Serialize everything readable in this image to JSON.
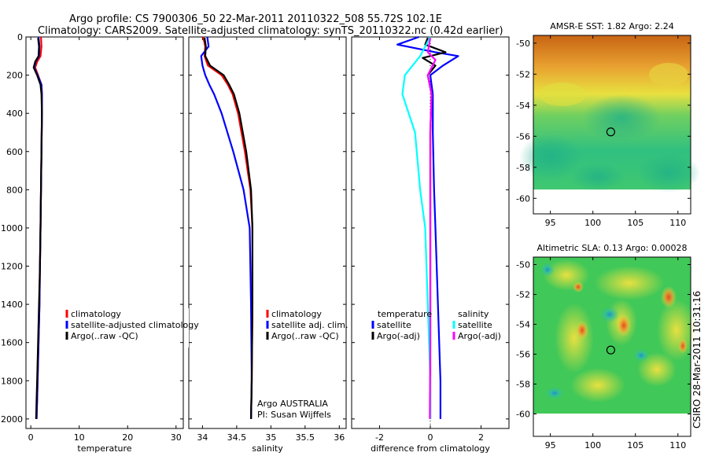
{
  "title": {
    "line1": "Argo profile: CS 7900306_50 22-Mar-2011 20110322_508 55.72S 102.1E",
    "line2": "Climatology: CARS2009. Satellite-adjusted climatology: synTS_20110322.nc (0.42d earlier)"
  },
  "footer_stamp": "CSIRO 28-Mar-2011 10:31:16",
  "colors": {
    "red": "#ff0000",
    "blue": "#0000ff",
    "black": "#000000",
    "cyan": "#00ffff",
    "magenta": "#ff00ff"
  },
  "chart_data": [
    {
      "id": "temperature",
      "type": "line",
      "xlabel": "temperature",
      "xlim": [
        -1,
        31.5
      ],
      "ylim": [
        0,
        2050
      ],
      "y_inverted": true,
      "xticks": [
        0,
        10,
        20,
        30
      ],
      "yticks": [
        0,
        200,
        400,
        600,
        800,
        1000,
        1200,
        1400,
        1600,
        1800,
        2000
      ],
      "legend": {
        "entries": [
          "climatology",
          "satellite-adjusted climatology",
          "Argo(..raw -QC)"
        ]
      },
      "series": [
        {
          "name": "climatology",
          "color": "red",
          "x": [
            2.1,
            2.2,
            2.0,
            1.3,
            0.9,
            1.5,
            2.2,
            2.3,
            2.3,
            2.2,
            2.1,
            2.0,
            1.9,
            1.8,
            1.6,
            1.4,
            1.3,
            1.2
          ],
          "y": [
            0,
            50,
            100,
            130,
            160,
            200,
            250,
            300,
            400,
            600,
            800,
            1000,
            1200,
            1400,
            1600,
            1800,
            1900,
            2000
          ]
        },
        {
          "name": "satellite-adjusted climatology",
          "color": "blue",
          "x": [
            1.6,
            1.8,
            1.7,
            1.0,
            0.7,
            1.4,
            2.2,
            2.3,
            2.3,
            2.2,
            2.1,
            2.0,
            1.9,
            1.8,
            1.6,
            1.4,
            1.3,
            1.2
          ],
          "y": [
            0,
            50,
            100,
            130,
            160,
            200,
            250,
            300,
            400,
            600,
            800,
            1000,
            1200,
            1400,
            1600,
            1800,
            1900,
            2000
          ]
        },
        {
          "name": "Argo(..raw -QC)",
          "color": "black",
          "x": [
            1.5,
            1.7,
            1.6,
            0.9,
            0.6,
            1.3,
            2.0,
            2.2,
            2.3,
            2.2,
            2.1,
            2.0,
            1.9,
            1.7,
            1.5,
            1.3,
            1.2,
            1.1
          ],
          "y": [
            5,
            50,
            100,
            130,
            160,
            200,
            250,
            300,
            400,
            600,
            800,
            1000,
            1200,
            1400,
            1600,
            1800,
            1900,
            2000
          ]
        }
      ]
    },
    {
      "id": "salinity",
      "type": "line",
      "xlabel": "salinity",
      "xlim": [
        33.8,
        36.1
      ],
      "ylim": [
        0,
        2050
      ],
      "y_inverted": true,
      "xticks": [
        34,
        34.5,
        35,
        35.5,
        36
      ],
      "legend": {
        "entries": [
          "climatology",
          "satellite adj. clim.",
          "Argo(..raw -QC)"
        ]
      },
      "annotation": {
        "line1": "Argo AUSTRALIA",
        "line2": "PI: Susan Wijffels"
      },
      "series": [
        {
          "name": "climatology",
          "color": "red",
          "x": [
            34.01,
            34.04,
            34.03,
            34.08,
            34.28,
            34.37,
            34.44,
            34.52,
            34.62,
            34.7,
            34.73,
            34.73,
            34.72,
            34.71
          ],
          "y": [
            0,
            50,
            100,
            150,
            200,
            250,
            300,
            400,
            600,
            800,
            1000,
            1400,
            1800,
            2000
          ]
        },
        {
          "name": "satellite adj. clim.",
          "color": "blue",
          "x": [
            34.07,
            34.09,
            33.98,
            34.0,
            34.04,
            34.1,
            34.17,
            34.28,
            34.45,
            34.6,
            34.69,
            34.71,
            34.72,
            34.71
          ],
          "y": [
            0,
            50,
            100,
            150,
            200,
            250,
            300,
            400,
            600,
            800,
            1000,
            1400,
            1800,
            2000
          ]
        },
        {
          "name": "Argo(..raw -QC)",
          "color": "black",
          "x": [
            34.03,
            34.05,
            34.04,
            34.11,
            34.31,
            34.39,
            34.46,
            34.54,
            34.64,
            34.71,
            34.73,
            34.73,
            34.72,
            34.71
          ],
          "y": [
            5,
            50,
            100,
            150,
            200,
            250,
            300,
            400,
            600,
            800,
            1000,
            1400,
            1800,
            2000
          ]
        }
      ]
    },
    {
      "id": "difference",
      "type": "line",
      "xlabel": "difference from climatology",
      "xlim": [
        -3.1,
        3.1
      ],
      "ylim": [
        0,
        2050
      ],
      "y_inverted": true,
      "xticks": [
        -2,
        0,
        2
      ],
      "legend": {
        "temperature_header": "temperature",
        "salinity_header": "salinity",
        "entries": [
          "satellite",
          "Argo(-adj)",
          "satellite",
          "Argo(-adj)"
        ]
      },
      "series": [
        {
          "name": "temperature satellite",
          "color": "blue",
          "x": [
            -0.45,
            -1.3,
            0.2,
            1.1,
            0.5,
            0.0,
            0.1,
            0.1,
            0.15,
            0.2,
            0.25,
            0.3,
            0.35,
            0.4,
            0.4
          ],
          "y": [
            0,
            40,
            80,
            100,
            150,
            200,
            300,
            500,
            800,
            1000,
            1200,
            1400,
            1600,
            1800,
            2000
          ]
        },
        {
          "name": "temperature Argo(-adj)",
          "color": "black",
          "x": [
            -0.1,
            -0.2,
            0.6,
            -0.3,
            0.2,
            -0.1,
            0.05,
            0.0,
            0.0,
            0.0,
            0.0,
            0.0,
            0.0
          ],
          "y": [
            5,
            40,
            80,
            110,
            150,
            200,
            300,
            500,
            800,
            1200,
            1600,
            1800,
            2000
          ]
        },
        {
          "name": "salinity satellite",
          "color": "cyan",
          "x": [
            0.0,
            -0.4,
            -1.0,
            -1.1,
            -0.6,
            -0.4,
            -0.2,
            -0.1,
            0.0,
            0.0
          ],
          "y": [
            0,
            100,
            200,
            300,
            500,
            800,
            1000,
            1400,
            1800,
            2000
          ]
        },
        {
          "name": "salinity Argo(-adj)",
          "color": "magenta",
          "x": [
            0.0,
            -0.1,
            0.2,
            -0.1,
            0.05,
            0.0,
            0.0,
            0.0,
            -0.02
          ],
          "y": [
            5,
            80,
            120,
            200,
            300,
            500,
            1000,
            1600,
            2000
          ]
        }
      ]
    },
    {
      "id": "sst_map",
      "type": "heatmap",
      "title": "AMSR-E SST: 1.82 Argo: 2.24",
      "xlim": [
        93,
        111.5
      ],
      "ylim": [
        -61,
        -49.5
      ],
      "xticks": [
        95,
        100,
        105,
        110
      ],
      "yticks": [
        -50,
        -52,
        -54,
        -56,
        -58,
        -60
      ],
      "data_extent": {
        "lon": [
          93,
          111.5
        ],
        "lat": [
          -60,
          -49.5
        ]
      },
      "marker": {
        "lon": 102.1,
        "lat": -55.72
      }
    },
    {
      "id": "sla_map",
      "type": "heatmap",
      "title": "Altimetric SLA: 0.13 Argo: 0.00028",
      "xlim": [
        93,
        111.5
      ],
      "ylim": [
        -61.5,
        -49.5
      ],
      "xticks": [
        95,
        100,
        105,
        110
      ],
      "yticks": [
        -50,
        -52,
        -54,
        -56,
        -58,
        -60
      ],
      "data_extent": {
        "lon": [
          93,
          111.5
        ],
        "lat": [
          -60,
          -49.5
        ]
      },
      "marker": {
        "lon": 102.1,
        "lat": -55.72
      }
    }
  ]
}
